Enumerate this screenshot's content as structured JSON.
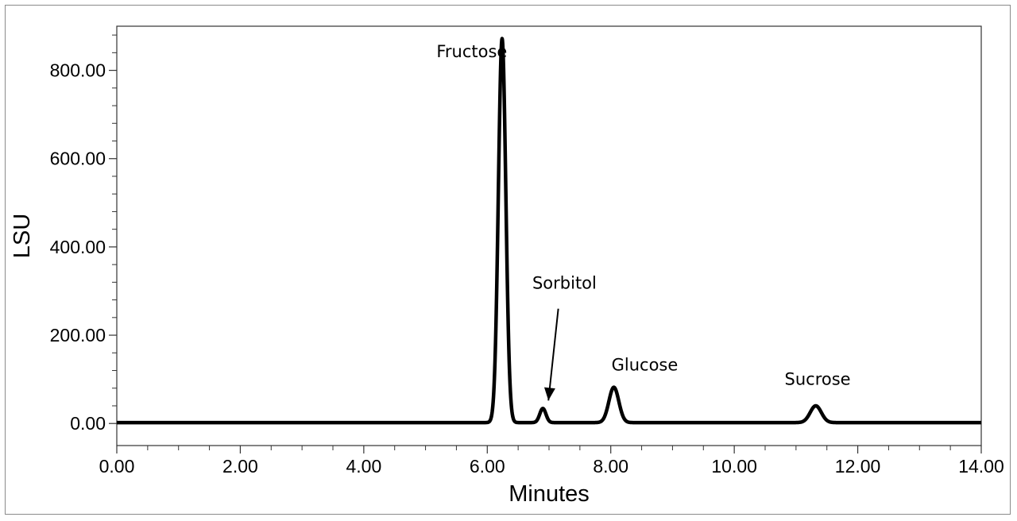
{
  "chart_data": {
    "type": "line",
    "title": "",
    "xlabel": "Minutes",
    "ylabel": "LSU",
    "xlim": [
      0,
      14
    ],
    "ylim": [
      -50,
      900
    ],
    "x_ticks": [
      "0.00",
      "2.00",
      "4.00",
      "6.00",
      "8.00",
      "10.00",
      "12.00",
      "14.00"
    ],
    "y_ticks": [
      "0.00",
      "200.00",
      "400.00",
      "600.00",
      "800.00"
    ],
    "grid": false,
    "series": [
      {
        "peaks": [
          {
            "name": "Fructose",
            "retention_time": 6.24,
            "height": 870,
            "width": 0.06
          },
          {
            "name": "Sorbitol",
            "retention_time": 6.9,
            "height": 32,
            "width": 0.05
          },
          {
            "name": "Glucose",
            "retention_time": 8.05,
            "height": 80,
            "width": 0.08
          },
          {
            "name": "Sucrose",
            "retention_time": 11.32,
            "height": 38,
            "width": 0.09
          }
        ],
        "baseline": 2
      }
    ],
    "annotations": [
      {
        "text": "Fructose",
        "x": 5.75,
        "y": 830
      },
      {
        "text": "Sorbitol",
        "x": 7.25,
        "y": 305
      },
      {
        "text": "Glucose",
        "x": 8.55,
        "y": 120
      },
      {
        "text": "Sucrose",
        "x": 11.35,
        "y": 88
      }
    ]
  }
}
